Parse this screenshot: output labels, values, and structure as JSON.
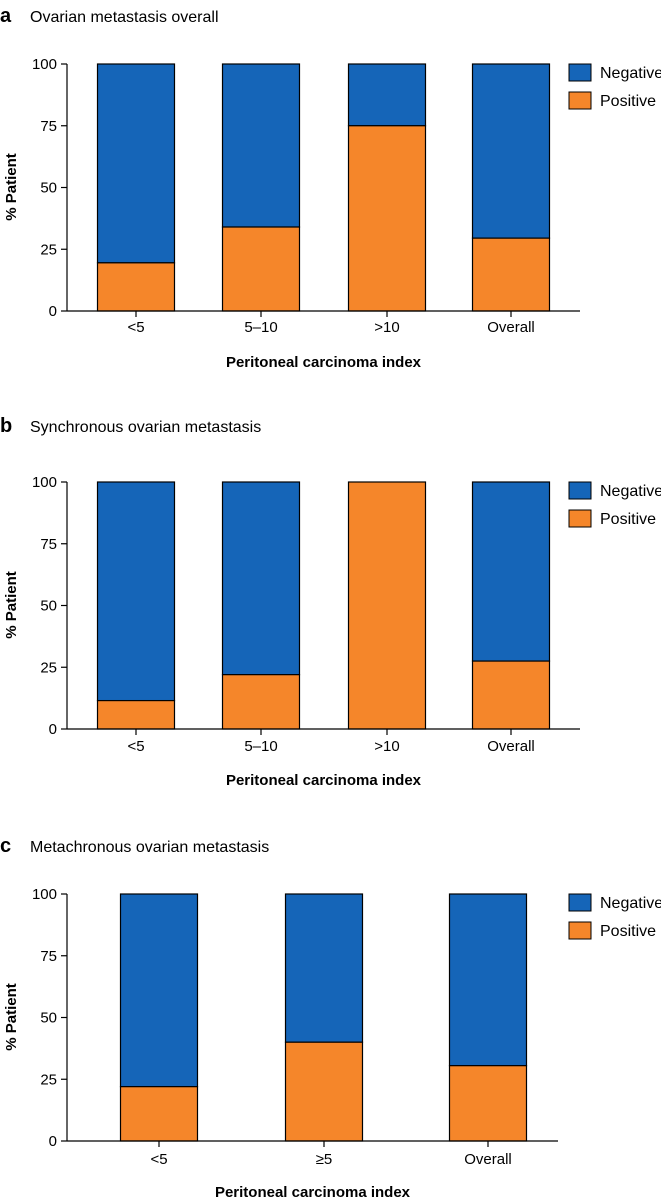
{
  "figure": {
    "background": "#ffffff"
  },
  "colors": {
    "negative": "#1565b8",
    "positive": "#f5862a",
    "stroke": "#000000"
  },
  "chart_data": [
    {
      "type": "bar",
      "stacked": true,
      "panel": "a",
      "title": "Ovarian metastasis overall",
      "xlabel": "Peritoneal carcinoma index",
      "ylabel": "% Patient",
      "ylim": [
        0,
        100
      ],
      "yticks": [
        0,
        25,
        50,
        75,
        100
      ],
      "categories": [
        "<5",
        "5–10",
        ">10",
        "Overall"
      ],
      "series": [
        {
          "name": "Positive",
          "values": [
            19.5,
            34,
            75,
            29.5
          ]
        },
        {
          "name": "Negative",
          "values": [
            80.5,
            66,
            25,
            70.5
          ]
        }
      ],
      "legend": [
        "Negative",
        "Positive"
      ],
      "legend_position": "top-right"
    },
    {
      "type": "bar",
      "stacked": true,
      "panel": "b",
      "title": "Synchronous ovarian metastasis",
      "xlabel": "Peritoneal carcinoma index",
      "ylabel": "% Patient",
      "ylim": [
        0,
        100
      ],
      "yticks": [
        0,
        25,
        50,
        75,
        100
      ],
      "categories": [
        "<5",
        "5–10",
        ">10",
        "Overall"
      ],
      "series": [
        {
          "name": "Positive",
          "values": [
            11.5,
            22,
            100,
            27.5
          ]
        },
        {
          "name": "Negative",
          "values": [
            88.5,
            78,
            0,
            72.5
          ]
        }
      ],
      "legend": [
        "Negative",
        "Positive"
      ],
      "legend_position": "top-right"
    },
    {
      "type": "bar",
      "stacked": true,
      "panel": "c",
      "title": "Metachronous ovarian metastasis",
      "xlabel": "Peritoneal carcinoma index",
      "ylabel": "% Patient",
      "ylim": [
        0,
        100
      ],
      "yticks": [
        0,
        25,
        50,
        75,
        100
      ],
      "categories": [
        "<5",
        "≥5",
        "Overall"
      ],
      "series": [
        {
          "name": "Positive",
          "values": [
            22,
            40,
            30.5
          ]
        },
        {
          "name": "Negative",
          "values": [
            78,
            60,
            69.5
          ]
        }
      ],
      "legend": [
        "Negative",
        "Positive"
      ],
      "legend_position": "top-right"
    }
  ]
}
